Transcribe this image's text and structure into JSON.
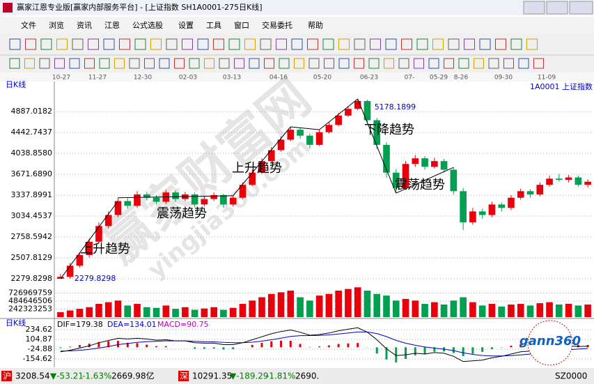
{
  "window": {
    "title": "赢家江恩专业版[赢家内部服务平台] - [上证指数  SH1A0001-275日K线]",
    "menu": [
      "文件",
      "浏览",
      "资讯",
      "江恩",
      "公式选股",
      "设置",
      "工具",
      "窗口",
      "交易委托",
      "帮助"
    ]
  },
  "chart_data": {
    "type": "candlestick",
    "title": "日K线",
    "symbol": "1A0001  上证指数",
    "x_ruler": [
      "10-27",
      "11-27",
      "12-30",
      "02-03",
      "03-13",
      "04-16",
      "05-20",
      "06-23",
      "07-",
      "05-29",
      "8-26",
      "09-30",
      "11-09"
    ],
    "log_scale": true,
    "grid": true,
    "ylim": [
      2244,
      5466
    ],
    "yticks": [
      2279.8298,
      2507.8129,
      2758.5942,
      3034.4537,
      3337.8991,
      {
        "value": 3671.689,
        "label": "3671.6890"
      },
      {
        "value": 4038.858,
        "label": "4038.8580"
      },
      4442.7437,
      4887.0182
    ],
    "up_color": "#e8000b",
    "down_color": "#00a050",
    "annotations": [
      "上升趋势",
      "震荡趋势",
      "上升趋势",
      "下降趋势",
      "震荡趋势"
    ],
    "candles": [
      [
        2280,
        2330,
        2279.8298,
        2300
      ],
      [
        2300,
        2450,
        2280,
        2420
      ],
      [
        2420,
        2570,
        2400,
        2540
      ],
      [
        2540,
        2740,
        2510,
        2700
      ],
      [
        2700,
        2950,
        2680,
        2900
      ],
      [
        2900,
        3100,
        2870,
        3050
      ],
      [
        3050,
        3300,
        3020,
        3250
      ],
      [
        3250,
        3290,
        3140,
        3180
      ],
      [
        3180,
        3400,
        3150,
        3350
      ],
      [
        3350,
        3390,
        3260,
        3300
      ],
      [
        3300,
        3340,
        3200,
        3240
      ],
      [
        3240,
        3420,
        3210,
        3380
      ],
      [
        3380,
        3410,
        3240,
        3280
      ],
      [
        3280,
        3390,
        3250,
        3350
      ],
      [
        3350,
        3380,
        3160,
        3200
      ],
      [
        3200,
        3320,
        3170,
        3280
      ],
      [
        3280,
        3380,
        3250,
        3340
      ],
      [
        3340,
        3360,
        3150,
        3200
      ],
      [
        3200,
        3330,
        3170,
        3300
      ],
      [
        3300,
        3540,
        3280,
        3500
      ],
      [
        3500,
        3750,
        3480,
        3700
      ],
      [
        3700,
        3950,
        3680,
        3900
      ],
      [
        3900,
        4160,
        3870,
        4100
      ],
      [
        4100,
        4360,
        4070,
        4300
      ],
      [
        4300,
        4560,
        4270,
        4500
      ],
      [
        4500,
        4540,
        4320,
        4380
      ],
      [
        4380,
        4420,
        4130,
        4200
      ],
      [
        4200,
        4500,
        4180,
        4450
      ],
      [
        4450,
        4660,
        4420,
        4600
      ],
      [
        4600,
        4860,
        4570,
        4800
      ],
      [
        4800,
        5010,
        4770,
        4950
      ],
      [
        4950,
        5178.1899,
        4920,
        5130
      ],
      [
        5130,
        5160,
        4650,
        4700
      ],
      [
        4700,
        4750,
        4120,
        4200
      ],
      [
        4200,
        4250,
        3620,
        3700
      ],
      [
        3700,
        3760,
        3370,
        3450
      ],
      [
        3450,
        3900,
        3420,
        3850
      ],
      [
        3850,
        4010,
        3800,
        3950
      ],
      [
        3950,
        3990,
        3750,
        3800
      ],
      [
        3800,
        3960,
        3770,
        3900
      ],
      [
        3900,
        3940,
        3700,
        3750
      ],
      [
        3750,
        3790,
        3350,
        3400
      ],
      [
        3400,
        3450,
        2850,
        2950
      ],
      [
        2950,
        3150,
        2920,
        3100
      ],
      [
        3100,
        3140,
        3000,
        3050
      ],
      [
        3050,
        3240,
        3020,
        3200
      ],
      [
        3200,
        3230,
        3100,
        3150
      ],
      [
        3150,
        3340,
        3120,
        3300
      ],
      [
        3300,
        3440,
        3270,
        3400
      ],
      [
        3400,
        3430,
        3300,
        3350
      ],
      [
        3350,
        3540,
        3320,
        3500
      ],
      [
        3500,
        3650,
        3470,
        3600
      ],
      [
        3600,
        3680,
        3550,
        3580
      ],
      [
        3580,
        3660,
        3540,
        3620
      ],
      [
        3620,
        3650,
        3470,
        3500
      ],
      [
        3500,
        3590,
        3460,
        3550
      ]
    ],
    "volume": {
      "ylim": [
        0,
        969293012
      ],
      "yticks": [
        242323253,
        484646506,
        726969759
      ],
      "values": [
        150000000,
        200000000,
        250000000,
        300000000,
        400000000,
        450000000,
        500000000,
        350000000,
        400000000,
        300000000,
        280000000,
        350000000,
        250000000,
        300000000,
        220000000,
        260000000,
        300000000,
        220000000,
        280000000,
        400000000,
        500000000,
        600000000,
        700000000,
        750000000,
        800000000,
        600000000,
        500000000,
        650000000,
        700000000,
        800000000,
        850000000,
        900000000,
        800000000,
        700000000,
        650000000,
        500000000,
        550000000,
        500000000,
        400000000,
        450000000,
        380000000,
        500000000,
        600000000,
        450000000,
        350000000,
        400000000,
        320000000,
        380000000,
        400000000,
        350000000,
        420000000,
        450000000,
        380000000,
        400000000,
        350000000,
        380000000
      ]
    },
    "macd": {
      "pane_title": "日K线",
      "labels": [
        "DIF=179.38",
        "DEA=134.01",
        "MACD=90.75"
      ],
      "ylim": [
        -219.5,
        262.4
      ],
      "yticks": [
        -154.62,
        -24.88,
        104.87,
        234.62
      ],
      "dif": [
        -60,
        -40,
        -10,
        20,
        60,
        90,
        120,
        110,
        120,
        110,
        95,
        100,
        85,
        85,
        60,
        55,
        55,
        35,
        35,
        60,
        100,
        140,
        180,
        210,
        230,
        200,
        160,
        170,
        190,
        220,
        240,
        260,
        200,
        100,
        -20,
        -110,
        -100,
        -80,
        -90,
        -70,
        -80,
        -120,
        -190,
        -180,
        -170,
        -140,
        -120,
        -90,
        -60,
        -50,
        -20,
        0,
        10,
        20,
        10,
        15
      ],
      "dea": [
        -50,
        -48,
        -40,
        -28,
        -10,
        10,
        35,
        50,
        65,
        75,
        80,
        85,
        85,
        85,
        80,
        75,
        72,
        65,
        60,
        60,
        68,
        82,
        100,
        122,
        144,
        155,
        156,
        158,
        165,
        176,
        189,
        203,
        203,
        183,
        142,
        92,
        54,
        27,
        4,
        -11,
        -25,
        -44,
        -73,
        -94,
        -109,
        -115,
        -116,
        -111,
        -101,
        -91,
        -77,
        -61,
        -47,
        -33,
        -24,
        -16
      ],
      "hist": [
        -10,
        8,
        30,
        48,
        70,
        80,
        85,
        60,
        55,
        35,
        15,
        15,
        0,
        0,
        -20,
        -20,
        -17,
        -30,
        -25,
        0,
        32,
        58,
        80,
        88,
        86,
        45,
        4,
        12,
        25,
        44,
        51,
        57,
        -3,
        -83,
        -162,
        -202,
        -154,
        -107,
        -94,
        -59,
        -55,
        -76,
        -117,
        -86,
        -61,
        -25,
        -4,
        21,
        41,
        41,
        57,
        61,
        57,
        53,
        34,
        31
      ]
    }
  },
  "watermark": [
    "赢家财富网",
    "yingjia360.com"
  ],
  "logo": "gann360",
  "status": [
    "沪",
    "3208.54",
    "▼-53.21",
    "-1.63%",
    "2669.98亿",
    "深",
    "10291.35",
    "▼-189.29",
    "-1.81%",
    "2690.",
    "SZ0000"
  ]
}
